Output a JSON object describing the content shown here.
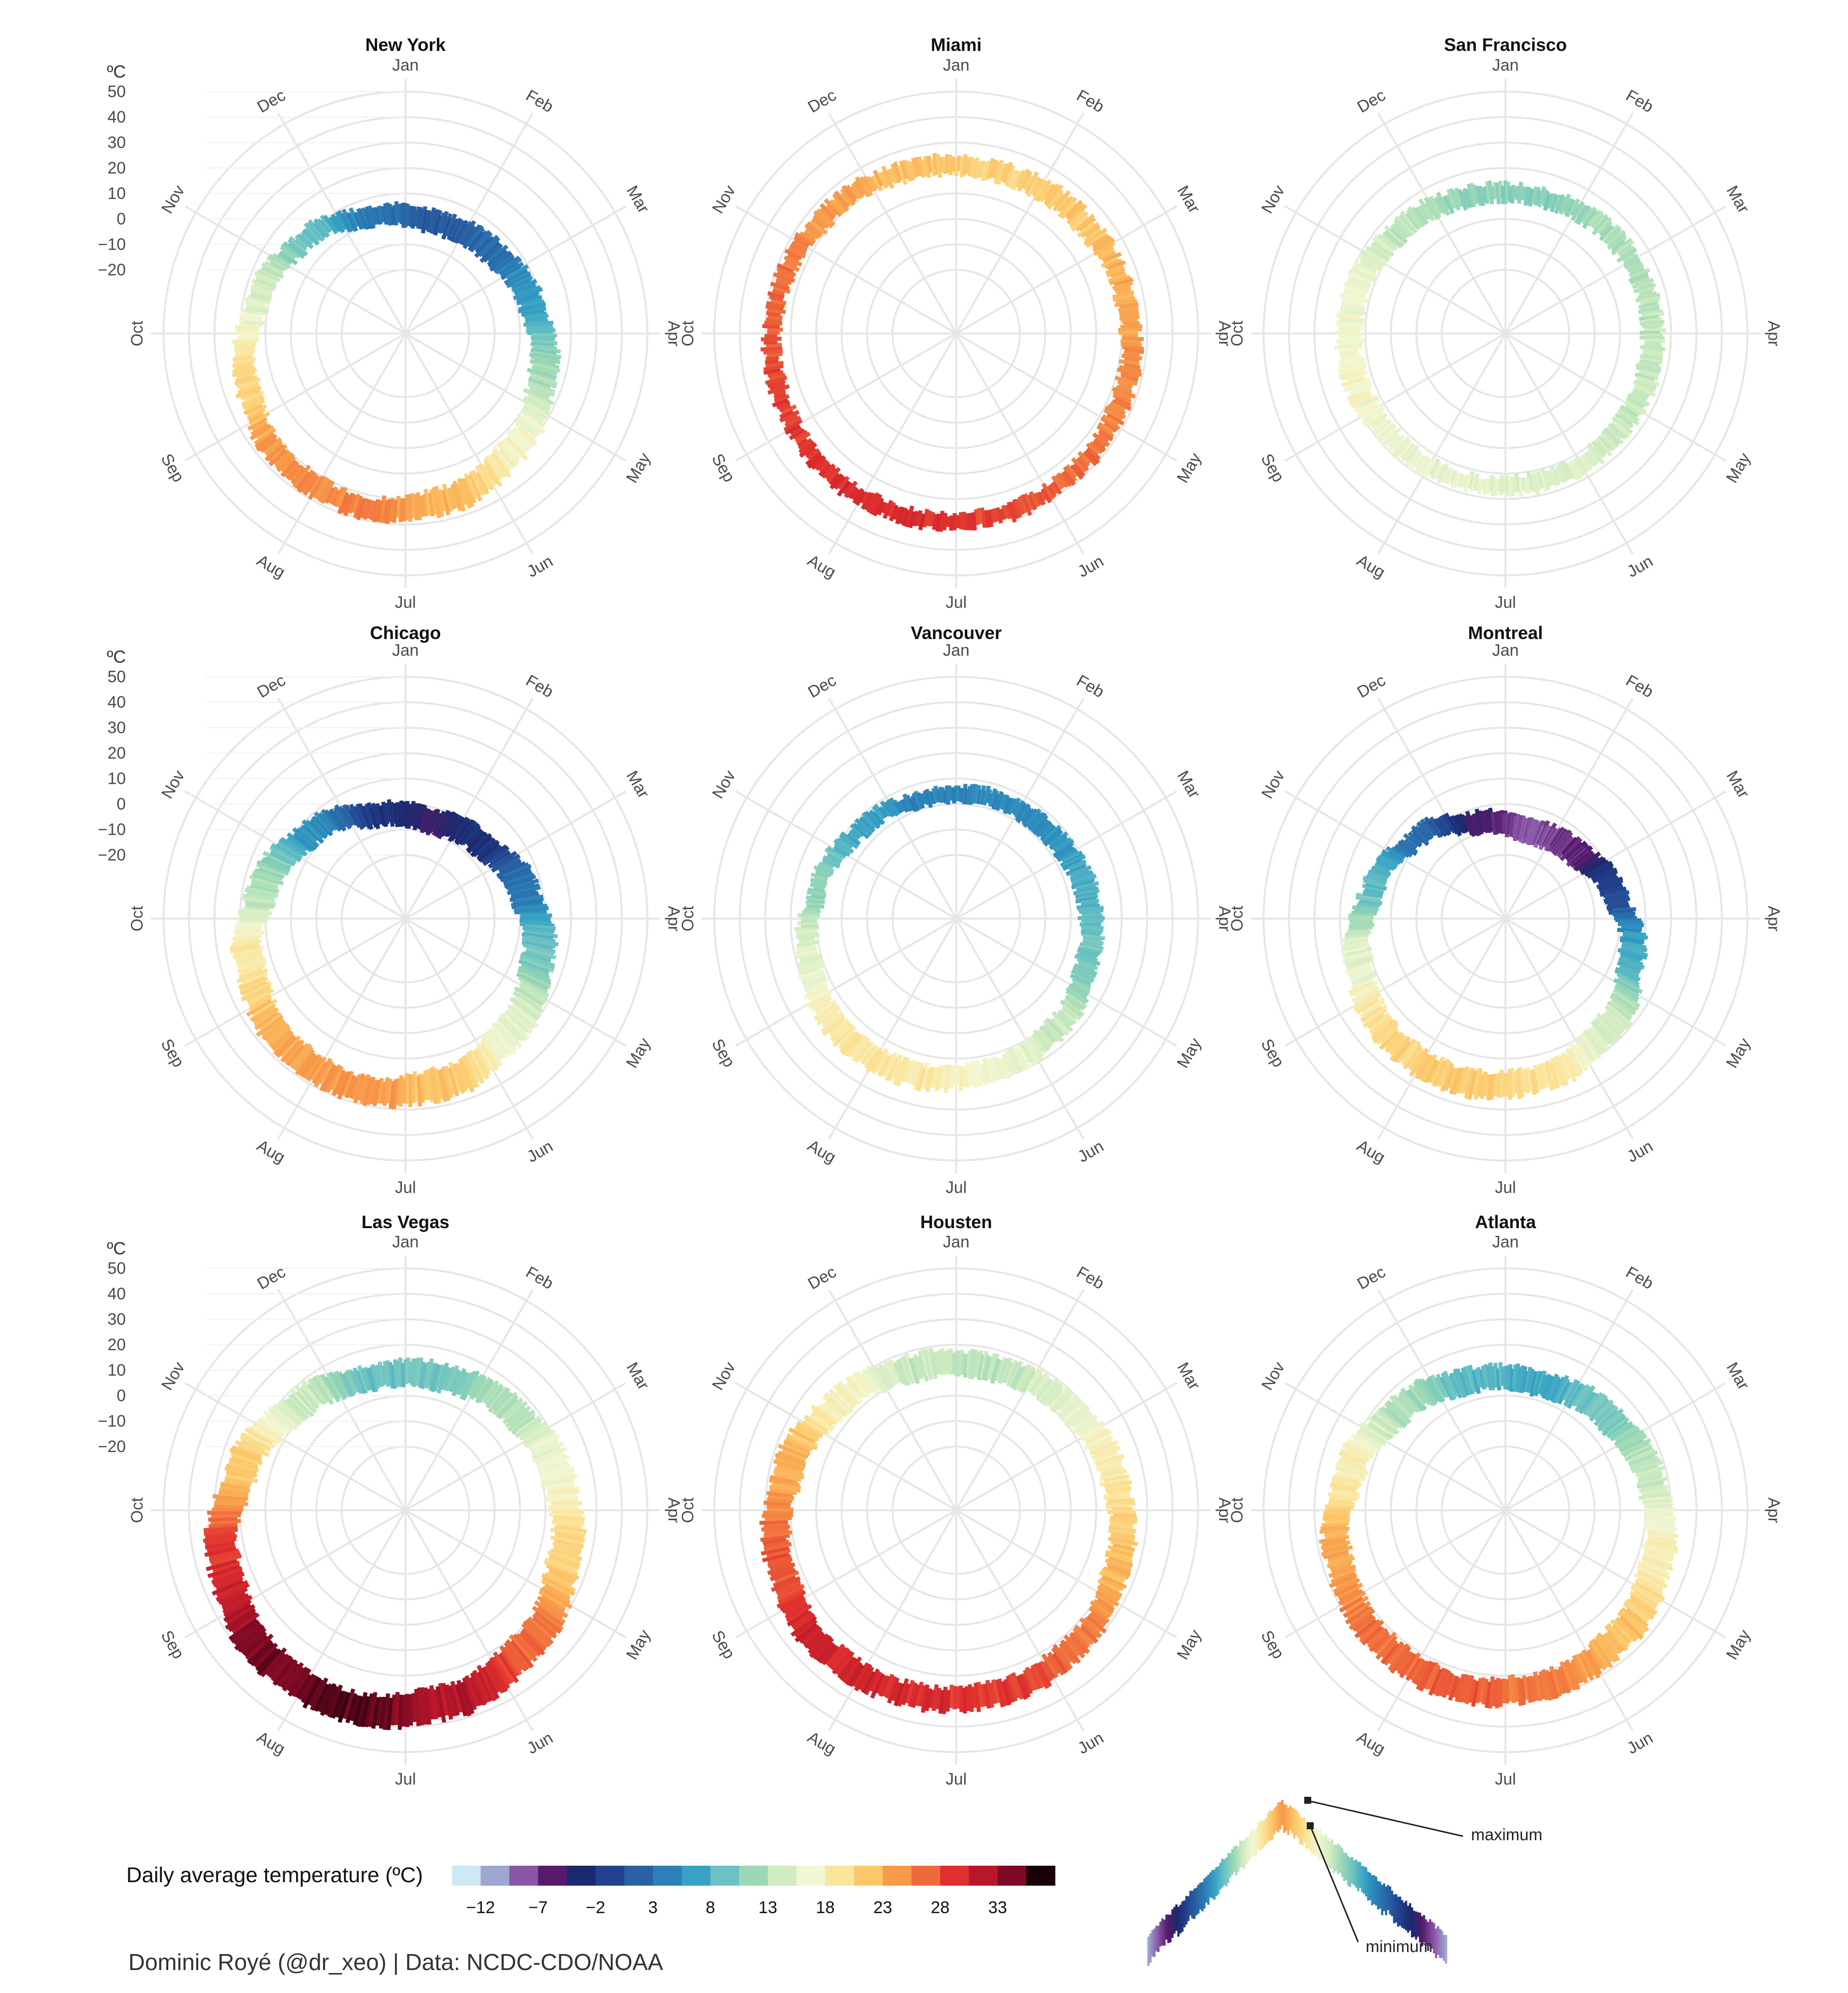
{
  "unit_label": "ºC",
  "credit": "Dominic Royé (@dr_xeo) | Data: NCDC-CDO/NOAA",
  "chart_data": {
    "type": "polar-bar",
    "months": [
      "Jan",
      "Feb",
      "Mar",
      "Apr",
      "May",
      "Jun",
      "Jul",
      "Aug",
      "Sep",
      "Oct",
      "Nov",
      "Dec"
    ],
    "radial_axis": {
      "ticks": [
        -20,
        -10,
        0,
        10,
        20,
        30,
        40,
        50
      ],
      "range": [
        -30,
        55
      ],
      "unit": "ºC",
      "shown_on_left_column_only": true
    },
    "grid": true,
    "charts": [
      {
        "title": "New York",
        "min": [
          -4,
          -3,
          1,
          6,
          12,
          17,
          21,
          20,
          16,
          10,
          5,
          -1
        ],
        "max": [
          4,
          6,
          10,
          16,
          22,
          27,
          29,
          28,
          24,
          18,
          12,
          6
        ]
      },
      {
        "title": "Miami",
        "min": [
          17,
          17,
          19,
          21,
          23,
          25,
          26,
          26,
          25,
          23,
          20,
          18
        ],
        "max": [
          24,
          25,
          26,
          28,
          29,
          31,
          32,
          32,
          31,
          29,
          27,
          25
        ]
      },
      {
        "title": "San Francisco",
        "min": [
          7,
          8,
          9,
          9,
          10,
          11,
          12,
          12,
          12,
          11,
          9,
          7
        ],
        "max": [
          13,
          15,
          16,
          17,
          17,
          18,
          18,
          19,
          21,
          20,
          17,
          14
        ]
      },
      {
        "title": "Chicago",
        "min": [
          -10,
          -8,
          -3,
          3,
          9,
          15,
          19,
          18,
          13,
          6,
          0,
          -7
        ],
        "max": [
          -1,
          1,
          8,
          15,
          21,
          27,
          29,
          28,
          24,
          17,
          9,
          1
        ]
      },
      {
        "title": "Vancouver",
        "min": [
          1,
          1,
          3,
          5,
          9,
          12,
          14,
          14,
          11,
          7,
          3,
          1
        ],
        "max": [
          7,
          8,
          11,
          13,
          17,
          20,
          23,
          23,
          19,
          13,
          9,
          6
        ]
      },
      {
        "title": "Montreal",
        "min": [
          -14,
          -12,
          -6,
          2,
          8,
          14,
          16,
          15,
          10,
          4,
          -2,
          -10
        ],
        "max": [
          -5,
          -3,
          3,
          11,
          19,
          24,
          26,
          25,
          20,
          12,
          5,
          -2
        ]
      },
      {
        "title": "Las Vegas",
        "min": [
          4,
          7,
          10,
          14,
          20,
          25,
          29,
          28,
          23,
          15,
          8,
          4
        ],
        "max": [
          14,
          17,
          22,
          26,
          32,
          38,
          41,
          40,
          35,
          27,
          19,
          13
        ]
      },
      {
        "title": "Housten",
        "min": [
          8,
          10,
          13,
          17,
          21,
          24,
          25,
          25,
          22,
          17,
          12,
          8
        ],
        "max": [
          17,
          19,
          23,
          26,
          30,
          33,
          34,
          35,
          32,
          28,
          22,
          18
        ]
      },
      {
        "title": "Atlanta",
        "min": [
          2,
          4,
          8,
          11,
          16,
          20,
          22,
          21,
          18,
          12,
          7,
          3
        ],
        "max": [
          11,
          14,
          18,
          23,
          27,
          30,
          32,
          31,
          28,
          23,
          17,
          12
        ]
      }
    ],
    "legend": {
      "title": "Daily average temperature (ºC)",
      "tick_labels": [
        "−12",
        "−7",
        "−2",
        "3",
        "8",
        "13",
        "18",
        "23",
        "28",
        "33"
      ],
      "colors": [
        "#cfe8f5",
        "#9ea7cf",
        "#8a55a6",
        "#561b6b",
        "#1b2a6e",
        "#22428f",
        "#2961a3",
        "#2b80b7",
        "#37a2c4",
        "#6bc2c3",
        "#9bd8b5",
        "#d2ecc2",
        "#f2f7d3",
        "#fbe59c",
        "#fcc769",
        "#f89a4a",
        "#ef6a3b",
        "#df2f2e",
        "#b8172a",
        "#7e0a25",
        "#1a0008"
      ]
    },
    "annotation": {
      "maximum_label": "maximum",
      "minimum_label": "minimum"
    }
  }
}
